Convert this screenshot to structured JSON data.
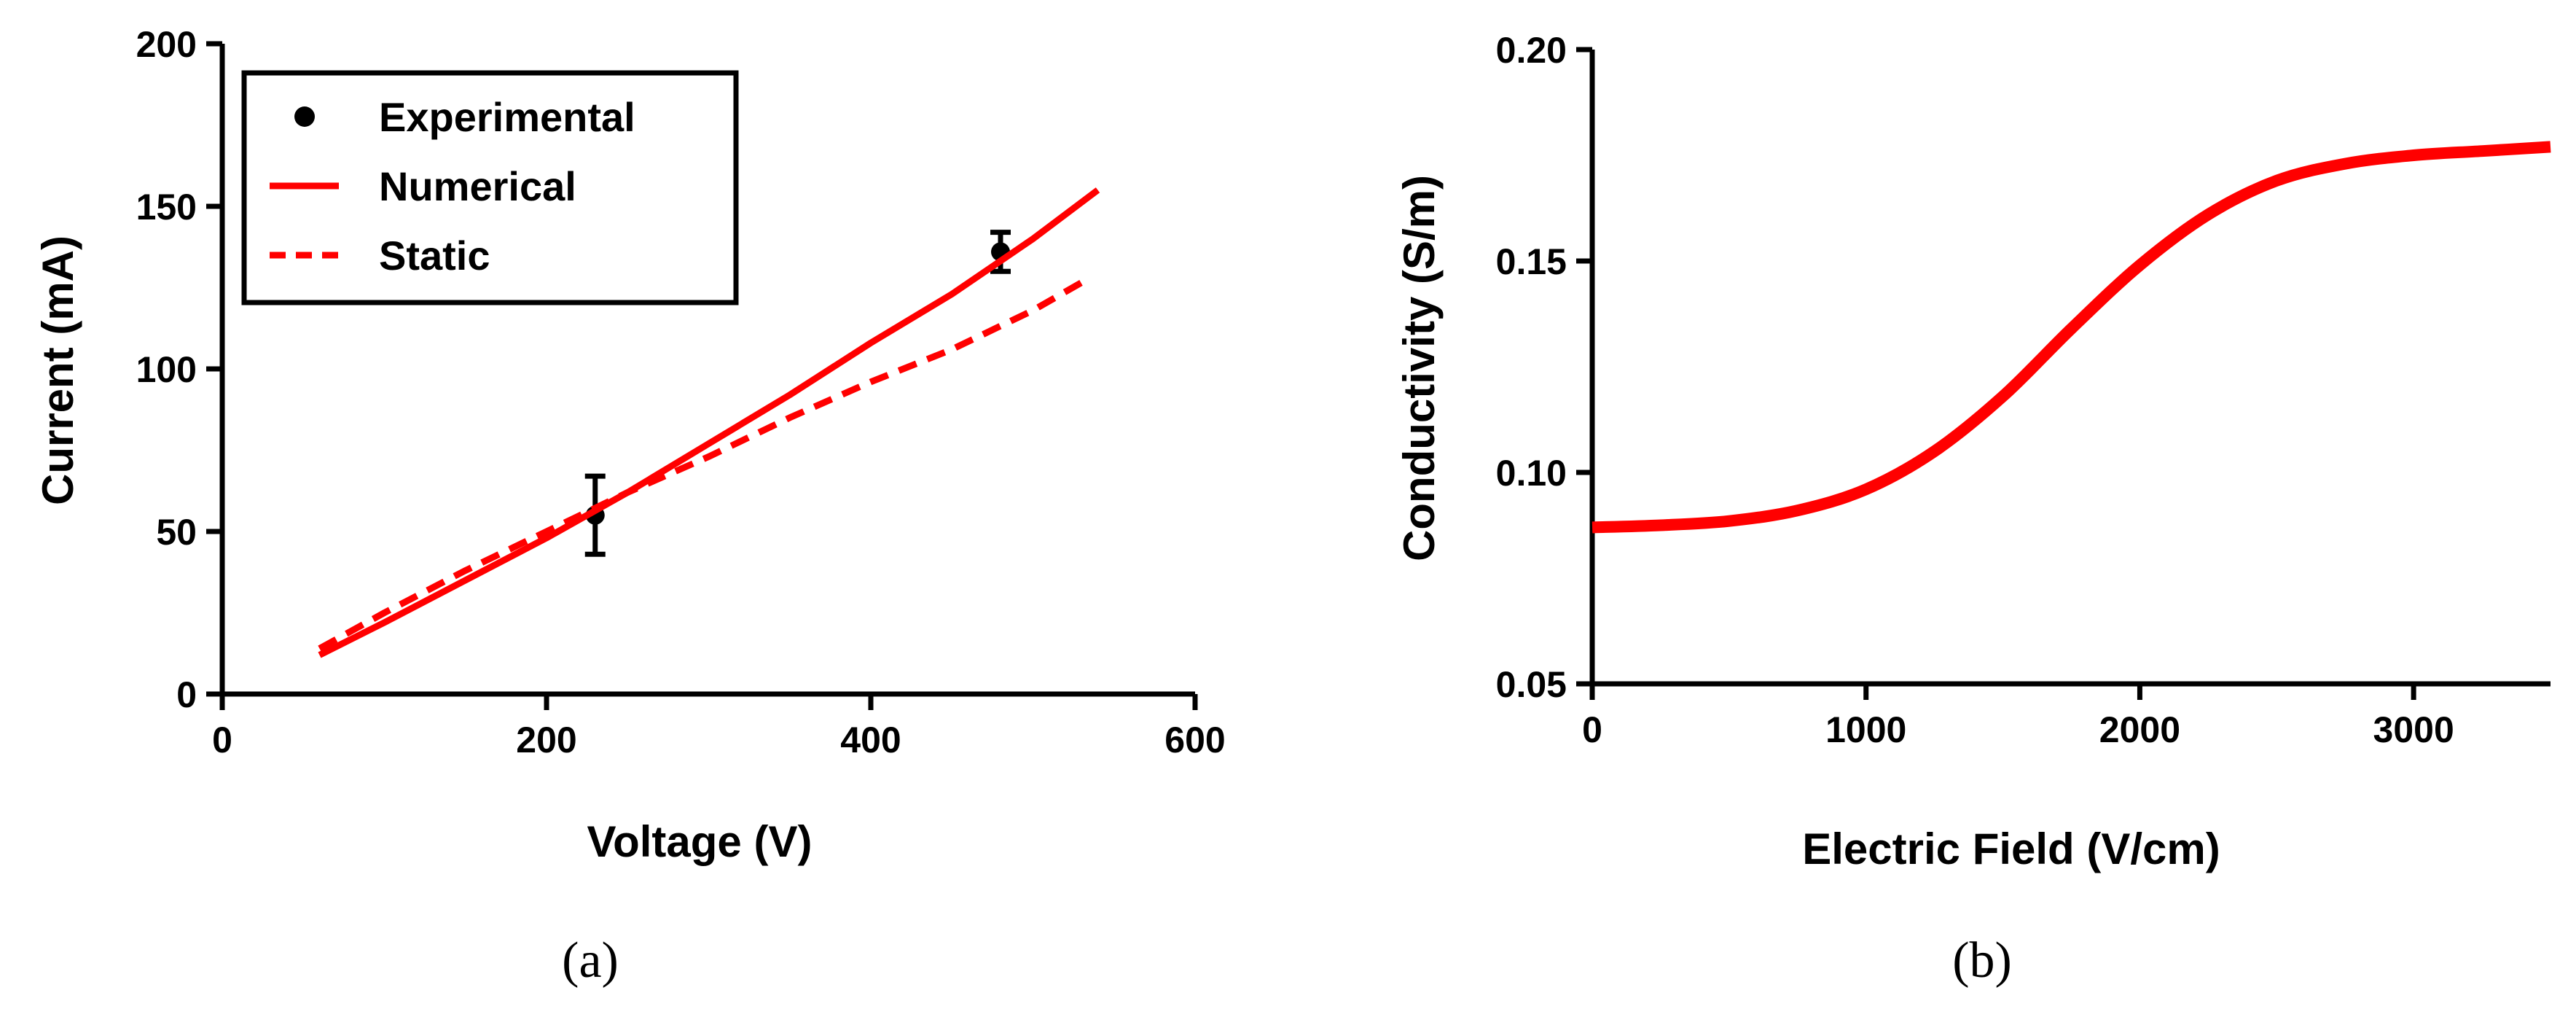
{
  "chart_data": [
    {
      "type": "line",
      "panel_label": "(a)",
      "xlabel": "Voltage (V)",
      "ylabel": "Current (mA)",
      "xlim": [
        0,
        600
      ],
      "ylim": [
        0,
        200
      ],
      "xticks": [
        0,
        200,
        400,
        600
      ],
      "yticks": [
        0,
        50,
        100,
        150,
        200
      ],
      "grid": false,
      "legend_position": "top-left",
      "series": [
        {
          "name": "Experimental",
          "style": "markers-errorbars",
          "color": "#000000",
          "points": [
            {
              "x": 230,
              "y": 55,
              "err": 12
            },
            {
              "x": 480,
              "y": 136,
              "err": 6
            }
          ]
        },
        {
          "name": "Numerical",
          "style": "solid",
          "color": "#ff0000",
          "x": [
            60,
            100,
            150,
            200,
            250,
            300,
            350,
            400,
            450,
            500,
            540
          ],
          "y": [
            12,
            22,
            35,
            48,
            62,
            77,
            92,
            108,
            123,
            140,
            155
          ]
        },
        {
          "name": "Static",
          "style": "dashed",
          "color": "#ff0000",
          "x": [
            60,
            100,
            150,
            200,
            250,
            300,
            350,
            400,
            450,
            500,
            535
          ],
          "y": [
            14,
            25,
            38,
            50,
            62,
            73,
            85,
            96,
            106,
            118,
            128
          ]
        }
      ]
    },
    {
      "type": "line",
      "panel_label": "(b)",
      "xlabel": "Electric Field (V/cm)",
      "ylabel": "Conductivity (S/m)",
      "xlim": [
        0,
        3500
      ],
      "ylim": [
        0.05,
        0.2
      ],
      "xticks": [
        0,
        1000,
        2000,
        3000
      ],
      "xtick_labels": [
        "0",
        "1000",
        "2000",
        "3000"
      ],
      "yticks": [
        0.05,
        0.1,
        0.15,
        0.2
      ],
      "ytick_labels": [
        "0.05",
        "0.10",
        "0.15",
        "0.20"
      ],
      "grid": false,
      "series": [
        {
          "style": "solid",
          "color": "#ff0000",
          "x": [
            0,
            250,
            500,
            750,
            1000,
            1250,
            1500,
            1750,
            2000,
            2250,
            2500,
            2750,
            3000,
            3250,
            3500
          ],
          "y": [
            0.087,
            0.0875,
            0.0885,
            0.091,
            0.096,
            0.105,
            0.118,
            0.134,
            0.149,
            0.161,
            0.169,
            0.173,
            0.175,
            0.176,
            0.177
          ]
        }
      ]
    }
  ]
}
